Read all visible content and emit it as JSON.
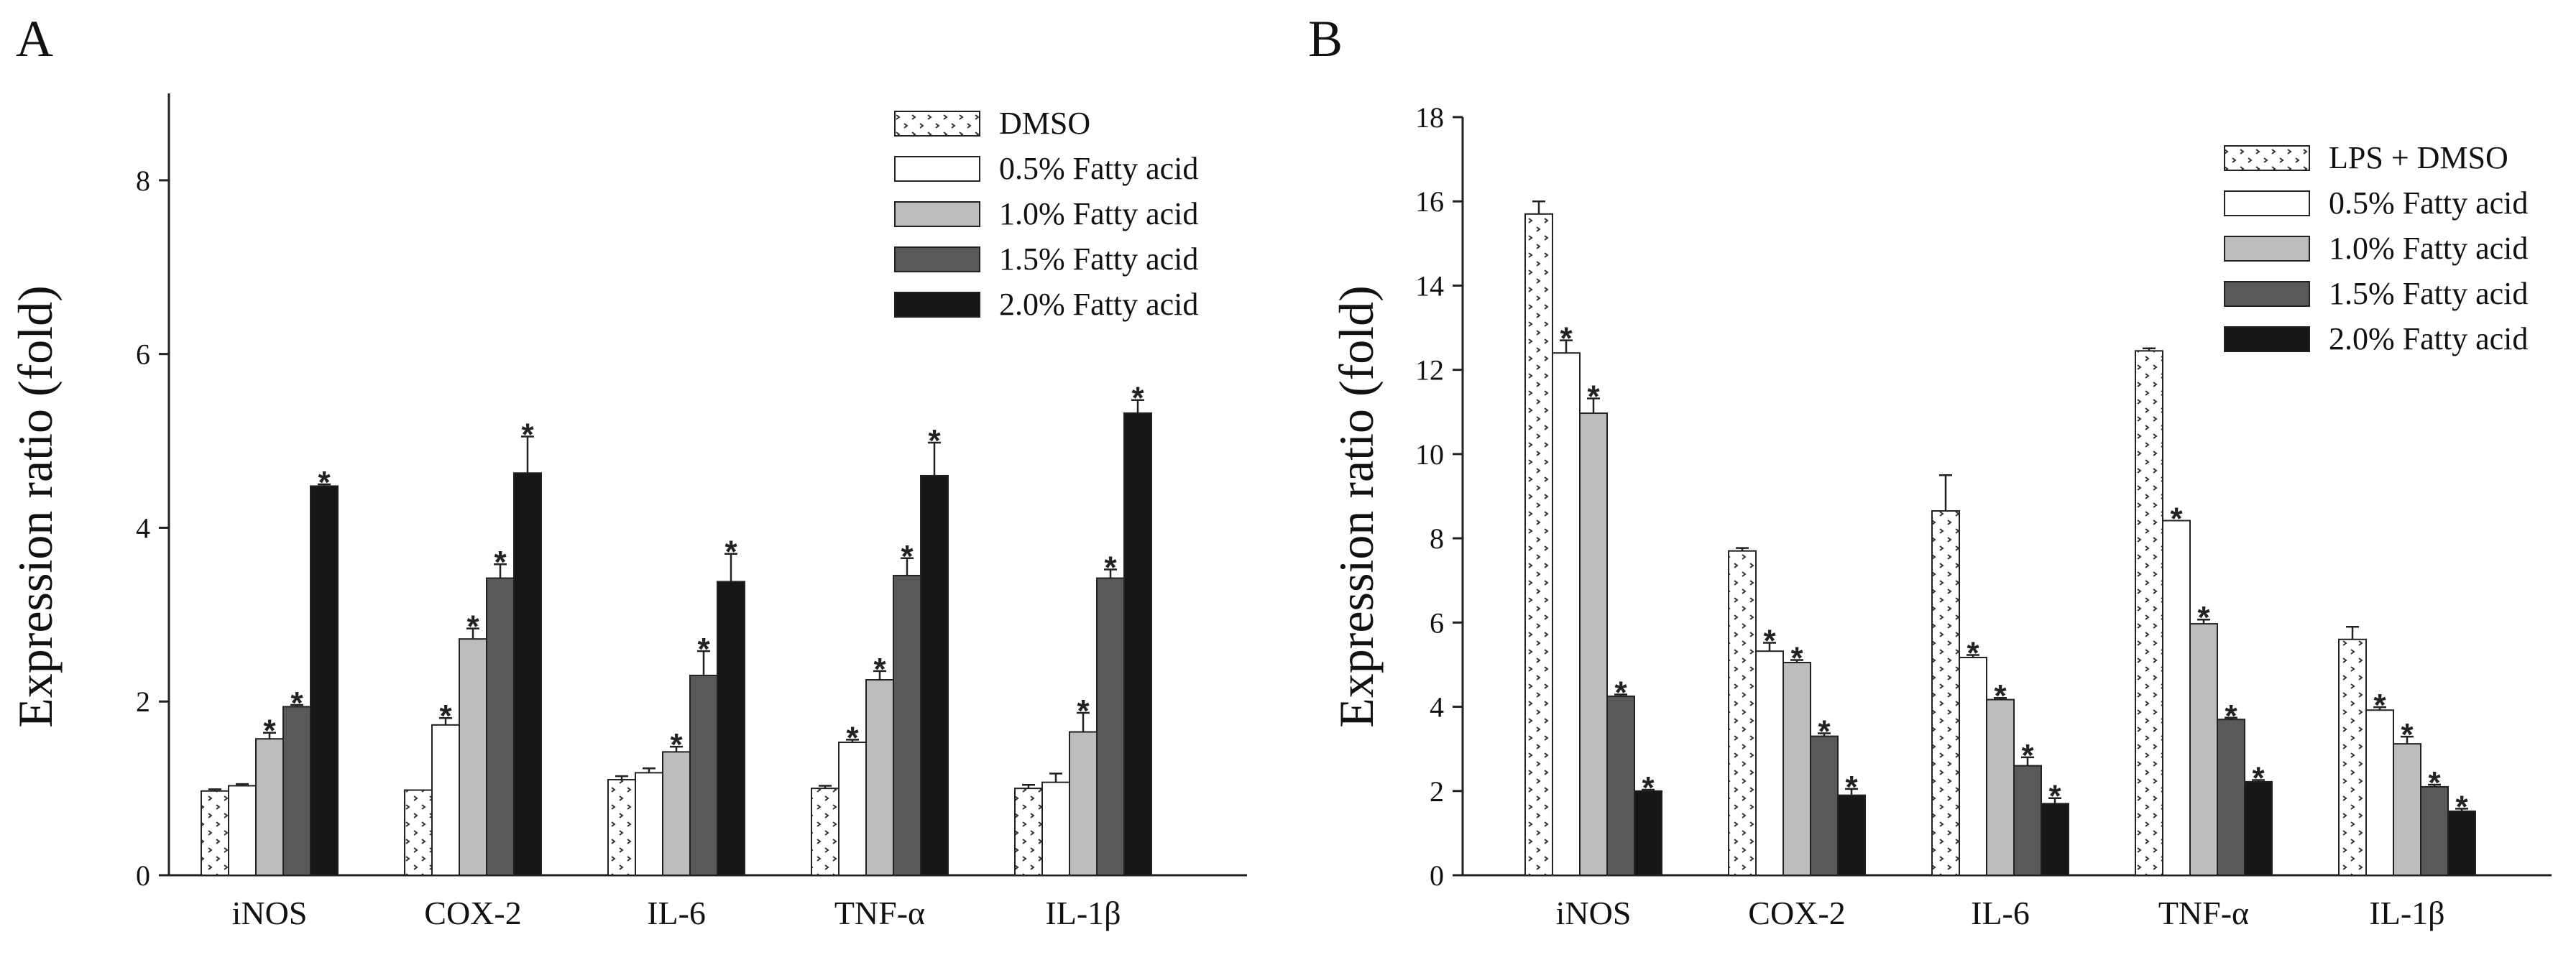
{
  "chart_data": [
    {
      "type": "bar",
      "panel_label": "A",
      "ylabel": "Expression ratio (fold)",
      "xlabel": "",
      "ylim": [
        0,
        9
      ],
      "yticks": [
        "0",
        "2",
        "4",
        "6",
        "8"
      ],
      "categories": [
        "iNOS",
        "COX-2",
        "IL-6",
        "TNF-α",
        "IL-1β"
      ],
      "legend_position": "top-right",
      "significance_marker": "*",
      "series": [
        {
          "name": "DMSO",
          "pattern": "dotted",
          "values": [
            0.97,
            0.98,
            1.1,
            1.0,
            1.0
          ],
          "errors": [
            0.02,
            0.0,
            0.04,
            0.03,
            0.04
          ],
          "significant": [
            false,
            false,
            false,
            false,
            false
          ]
        },
        {
          "name": "0.5% Fatty acid",
          "pattern": "white",
          "values": [
            1.03,
            1.73,
            1.18,
            1.53,
            1.07
          ],
          "errors": [
            0.02,
            0.08,
            0.05,
            0.03,
            0.1
          ],
          "significant": [
            false,
            true,
            false,
            true,
            false
          ]
        },
        {
          "name": "1.0% Fatty acid",
          "pattern": "light-gray",
          "values": [
            1.57,
            2.72,
            1.42,
            2.25,
            1.65
          ],
          "errors": [
            0.07,
            0.12,
            0.06,
            0.1,
            0.22
          ],
          "significant": [
            true,
            true,
            true,
            true,
            true
          ]
        },
        {
          "name": "1.5% Fatty acid",
          "pattern": "dark-gray",
          "values": [
            1.94,
            3.42,
            2.3,
            3.45,
            3.42
          ],
          "errors": [
            0.02,
            0.16,
            0.28,
            0.2,
            0.1
          ],
          "significant": [
            true,
            true,
            true,
            true,
            true
          ]
        },
        {
          "name": "2.0% Fatty acid",
          "pattern": "black",
          "values": [
            4.48,
            4.63,
            3.38,
            4.6,
            5.32
          ],
          "errors": [
            0.02,
            0.42,
            0.32,
            0.38,
            0.15
          ],
          "significant": [
            true,
            true,
            true,
            true,
            true
          ]
        }
      ],
      "colors": {
        "white": "#ffffff",
        "light-gray": "#bdbdbd",
        "dark-gray": "#595959",
        "black": "#161616",
        "dotted": "#ffffff"
      }
    },
    {
      "type": "bar",
      "panel_label": "B",
      "ylabel": "Expression ratio (fold)",
      "xlabel": "",
      "ylim": [
        0,
        18
      ],
      "yticks": [
        "0",
        "2",
        "4",
        "6",
        "8",
        "10",
        "12",
        "14",
        "16",
        "18"
      ],
      "categories": [
        "iNOS",
        "COX-2",
        "IL-6",
        "TNF-α",
        "IL-1β"
      ],
      "legend_position": "top-right",
      "significance_marker": "*",
      "series": [
        {
          "name": "LPS + DMSO",
          "pattern": "dotted",
          "values": [
            15.7,
            7.7,
            8.65,
            12.45,
            5.6
          ],
          "errors": [
            0.3,
            0.07,
            0.85,
            0.06,
            0.3
          ],
          "significant": [
            false,
            false,
            false,
            false,
            false
          ]
        },
        {
          "name": "0.5% Fatty acid",
          "pattern": "white",
          "values": [
            12.4,
            5.32,
            5.17,
            8.42,
            3.92
          ],
          "errors": [
            0.3,
            0.2,
            0.06,
            0.0,
            0.07
          ],
          "significant": [
            true,
            true,
            true,
            true,
            true
          ]
        },
        {
          "name": "1.0% Fatty acid",
          "pattern": "light-gray",
          "values": [
            10.97,
            5.05,
            4.17,
            5.97,
            3.12
          ],
          "errors": [
            0.35,
            0.06,
            0.04,
            0.1,
            0.17
          ],
          "significant": [
            true,
            true,
            true,
            true,
            true
          ]
        },
        {
          "name": "1.5% Fatty acid",
          "pattern": "dark-gray",
          "values": [
            4.25,
            3.3,
            2.6,
            3.7,
            2.1
          ],
          "errors": [
            0.04,
            0.07,
            0.2,
            0.04,
            0.05
          ],
          "significant": [
            true,
            true,
            true,
            true,
            true
          ]
        },
        {
          "name": "2.0% Fatty acid",
          "pattern": "black",
          "values": [
            2.0,
            1.9,
            1.7,
            2.22,
            1.52
          ],
          "errors": [
            0.03,
            0.15,
            0.13,
            0.04,
            0.06
          ],
          "significant": [
            true,
            true,
            true,
            true,
            true
          ]
        }
      ],
      "colors": {
        "white": "#ffffff",
        "light-gray": "#bdbdbd",
        "dark-gray": "#595959",
        "black": "#161616",
        "dotted": "#ffffff"
      }
    }
  ]
}
